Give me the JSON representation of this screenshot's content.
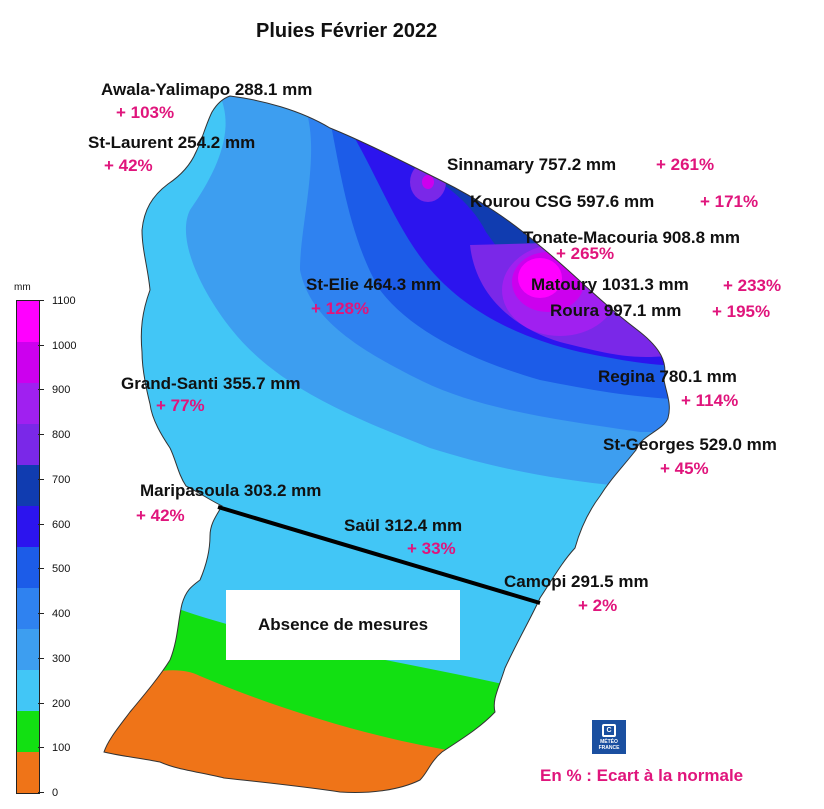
{
  "title": "Pluies Février 2022",
  "legend": {
    "unit": "mm",
    "ticks": [
      "1100",
      "1000",
      "900",
      "800",
      "700",
      "600",
      "500",
      "400",
      "300",
      "200",
      "100",
      "0"
    ],
    "colors": [
      "#ff00ff",
      "#cc00ee",
      "#a020f0",
      "#7a28e8",
      "#103cb0",
      "#2c14ee",
      "#1c5ce8",
      "#2f82f0",
      "#3d9ef0",
      "#42c6f6",
      "#12e012",
      "#ef7418"
    ]
  },
  "stations": {
    "awala": {
      "label": "Awala-Yalimapo 288.1 mm",
      "pct": "+ 103%"
    },
    "stlaurent": {
      "label": "St-Laurent  254.2 mm",
      "pct": "+ 42%"
    },
    "sinnamary": {
      "label": "Sinnamary  757.2 mm",
      "pct": "+ 261%"
    },
    "kourou": {
      "label": "Kourou CSG  597.6 mm",
      "pct": "+ 171%"
    },
    "tonate": {
      "label": "Tonate-Macouria  908.8 mm",
      "pct": "+ 265%"
    },
    "matoury": {
      "label": "Matoury 1031.3 mm",
      "pct": "+ 233%"
    },
    "roura": {
      "label": "Roura 997.1 mm",
      "pct": "+ 195%"
    },
    "stelie": {
      "label": "St-Elie  464.3 mm",
      "pct": "+ 128%"
    },
    "grandsanti": {
      "label": "Grand-Santi 355.7 mm",
      "pct": "+ 77%"
    },
    "regina": {
      "label": "Regina  780.1 mm",
      "pct": "+ 114%"
    },
    "stgeorges": {
      "label": "St-Georges  529.0 mm",
      "pct": "+ 45%"
    },
    "maripasoula": {
      "label": "Maripasoula  303.2 mm",
      "pct": "+ 42%"
    },
    "saul": {
      "label": "Saül  312.4 mm",
      "pct": "+ 33%"
    },
    "camopi": {
      "label": "Camopi  291.5 mm",
      "pct": "+ 2%"
    }
  },
  "absence_label": "Absence de mesures",
  "note": "En % : Ecart à la normale",
  "logo_text": "MÉTÉO FRANCE"
}
